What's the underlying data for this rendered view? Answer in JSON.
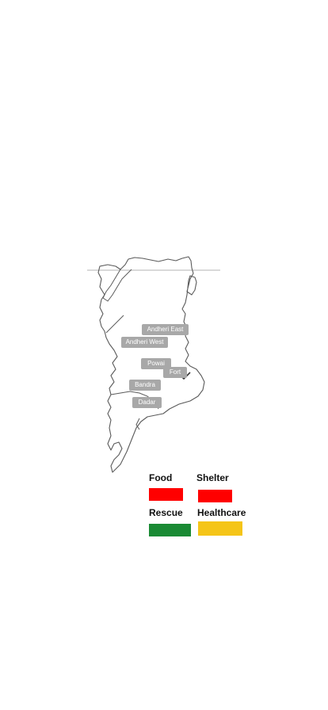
{
  "map": {
    "areas": [
      {
        "label": "Andheri East"
      },
      {
        "label": "Andheri West"
      },
      {
        "label": "Powai"
      },
      {
        "label": "Fort"
      },
      {
        "label": "Bandra"
      },
      {
        "label": "Dadar"
      }
    ]
  },
  "legend": {
    "items": [
      {
        "label": "Food",
        "color": "#ff0000"
      },
      {
        "label": "Shelter",
        "color": "#ff0000"
      },
      {
        "label": "Rescue",
        "color": "#1a8a34"
      },
      {
        "label": "Healthcare",
        "color": "#f5c518"
      }
    ]
  }
}
